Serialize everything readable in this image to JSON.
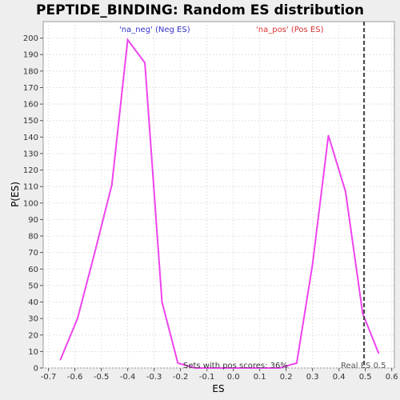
{
  "chart_data": {
    "type": "line",
    "title": "PEPTIDE_BINDING: Random ES distribution",
    "xlabel": "ES",
    "ylabel": "P(ES)",
    "xlim": [
      -0.72,
      0.61
    ],
    "ylim": [
      0,
      210
    ],
    "x_ticks": [
      -0.7,
      -0.6,
      -0.5,
      -0.4,
      -0.3,
      -0.2,
      -0.1,
      0.0,
      0.1,
      0.2,
      0.3,
      0.4,
      0.5,
      0.6
    ],
    "x_tick_labels": [
      "-0.7",
      "-0.6",
      "-0.5",
      "-0.4",
      "-0.3",
      "-0.2",
      "-0.1",
      "0.0",
      "0.1",
      "0.2",
      "0.3",
      "0.4",
      "0.5",
      "0.6"
    ],
    "y_ticks": [
      0,
      10,
      20,
      30,
      40,
      50,
      60,
      70,
      80,
      90,
      100,
      110,
      120,
      130,
      140,
      150,
      160,
      170,
      180,
      190,
      200
    ],
    "y_tick_labels": [
      "0",
      "10",
      "20",
      "30",
      "40",
      "50",
      "60",
      "70",
      "80",
      "90",
      "100",
      "110",
      "120",
      "130",
      "140",
      "150",
      "160",
      "170",
      "180",
      "190",
      "200"
    ],
    "grid": true,
    "series": [
      {
        "color": "#ee44ee",
        "x": [
          -0.655,
          -0.59,
          -0.525,
          -0.46,
          -0.4,
          -0.335,
          -0.27,
          -0.21,
          -0.145,
          -0.08,
          -0.015,
          0.05,
          0.11,
          0.175,
          0.24,
          0.3,
          0.36,
          0.425,
          0.49,
          0.55
        ],
        "y": [
          5,
          30,
          70,
          111,
          199,
          185,
          40,
          3,
          0,
          0,
          0,
          0,
          0,
          0,
          3,
          63,
          141,
          107,
          33,
          9
        ]
      }
    ],
    "real_es": 0.495,
    "annotations": {
      "neg": "'na_neg' (Neg ES)",
      "pos": "'na_pos' (Pos ES)",
      "sets": "Sets with pos scores: 36%",
      "real": "Real ES 0.5"
    },
    "colors": {
      "neg": "#3333cc",
      "pos": "#dd3333",
      "line": "#ee44ee"
    }
  }
}
